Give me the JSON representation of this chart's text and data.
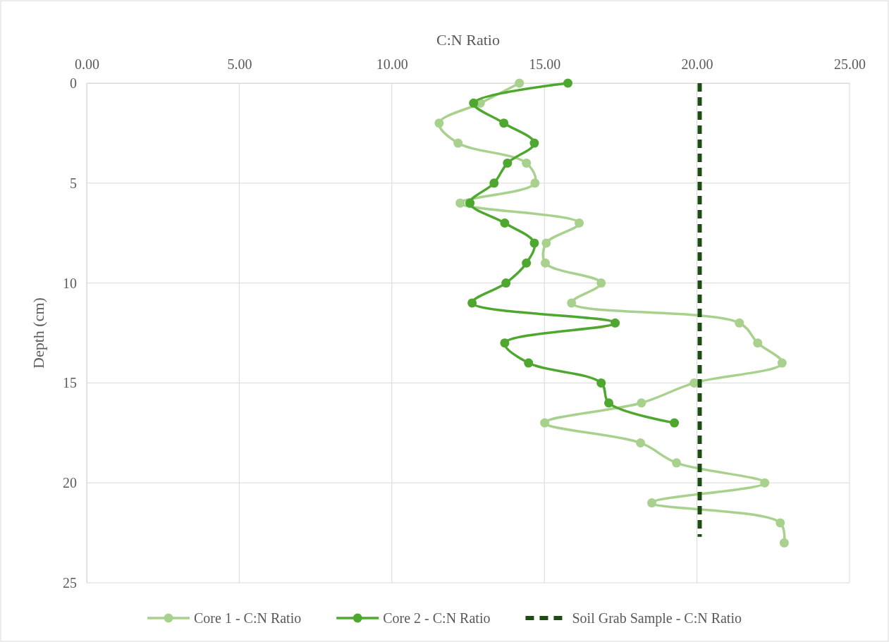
{
  "chart_data": {
    "type": "line",
    "xlabel": "C:N Ratio",
    "ylabel": "Depth (cm)",
    "xlim": [
      0,
      25
    ],
    "xticks": [
      {
        "value": 0,
        "label": "0.00"
      },
      {
        "value": 5,
        "label": "5.00"
      },
      {
        "value": 10,
        "label": "10.00"
      },
      {
        "value": 15,
        "label": "15.00"
      },
      {
        "value": 20,
        "label": "20.00"
      },
      {
        "value": 25,
        "label": "25.00"
      }
    ],
    "ylim": [
      25,
      0
    ],
    "yticks": [
      0,
      5,
      10,
      15,
      20,
      25
    ],
    "grid": true,
    "legend": "bottom",
    "series": [
      {
        "name": "Core 1 - C:N Ratio",
        "color": "#a9d18e",
        "marker": "circle",
        "line_style": "solid",
        "x": [
          14.18,
          12.9,
          11.55,
          12.17,
          14.41,
          14.69,
          12.24,
          16.14,
          15.06,
          15.03,
          16.86,
          15.89,
          21.39,
          21.99,
          22.79,
          19.91,
          18.18,
          15.01,
          18.15,
          19.33,
          22.22,
          18.52,
          22.73,
          22.86
        ],
        "values": [
          0,
          1,
          2,
          3,
          4,
          5,
          6,
          7,
          8,
          9,
          10,
          11,
          12,
          13,
          14,
          15,
          16,
          17,
          18,
          19,
          20,
          21,
          22,
          23
        ]
      },
      {
        "name": "Core 2 - C:N Ratio",
        "color": "#4ea72e",
        "marker": "circle",
        "line_style": "solid",
        "x": [
          15.77,
          12.68,
          13.67,
          14.67,
          13.79,
          13.35,
          12.56,
          13.7,
          14.67,
          14.41,
          13.74,
          12.63,
          17.32,
          13.7,
          14.48,
          16.86,
          17.11,
          19.26
        ],
        "values": [
          0,
          1,
          2,
          3,
          4,
          5,
          6,
          7,
          8,
          9,
          10,
          11,
          12,
          13,
          14,
          15,
          16,
          17
        ]
      },
      {
        "name": "Soil Grab Sample - C:N Ratio",
        "color": "#1e4d14",
        "marker": "none",
        "line_style": "dashed",
        "x": [
          20.09,
          20.09
        ],
        "values": [
          0,
          22.7
        ]
      }
    ]
  }
}
